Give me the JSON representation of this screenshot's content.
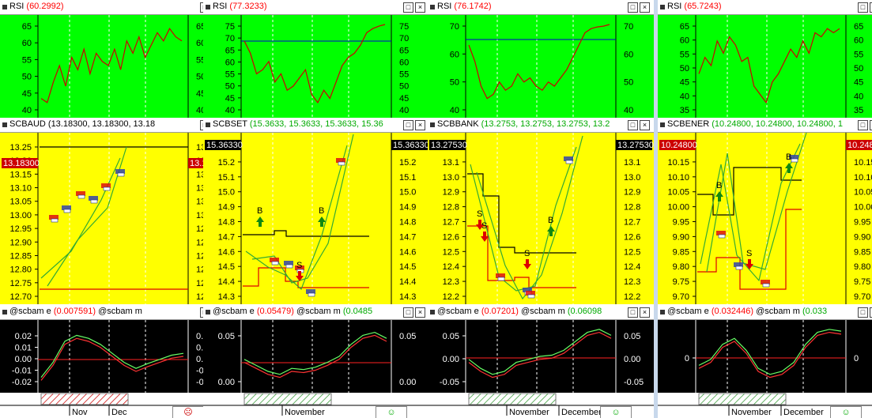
{
  "columns": [
    {
      "rsi_title": "RSI",
      "rsi_value": "(60.2992)",
      "rsi_ticks": [
        "65",
        "60",
        "55",
        "50",
        "45",
        "40"
      ],
      "price_title": "SCBAUD",
      "price_values": "(13.18300, 13.18300, 13.18",
      "price_badge": "13.18300",
      "price_ticks": [
        "13.25",
        "13.20",
        "13.15",
        "13.10",
        "13.05",
        "13.00",
        "12.95",
        "12.90",
        "12.85",
        "12.80",
        "12.75",
        "12.70"
      ],
      "osc_title": "@scbam e",
      "osc_e_value": "(0.007591)",
      "osc_m_label": "@scbam m",
      "osc_ticks": [
        "0.02",
        "0.01",
        "0.00",
        "-0.01",
        "-0.02"
      ],
      "months": [
        "Nov",
        "Dec"
      ],
      "smile": "☹",
      "signals": []
    },
    {
      "rsi_title": "RSI",
      "rsi_value": "(77.3233)",
      "rsi_ticks": [
        "75",
        "70",
        "65",
        "60",
        "55",
        "50",
        "45",
        "40"
      ],
      "price_title": "SCBSET",
      "price_values": "(15.3633, 15.3633, 15.3633, 15.36",
      "price_badge": "15.36330",
      "price_ticks": [
        "15.3",
        "15.2",
        "15.1",
        "15.0",
        "14.9",
        "14.8",
        "14.7",
        "14.6",
        "14.5",
        "14.4",
        "14.3"
      ],
      "osc_title": "@scbam e",
      "osc_e_value": "(0.05479)",
      "osc_m_label": "@scbam m",
      "osc_m_value": "(0.0485",
      "osc_ticks": [
        "0.05",
        "0.00"
      ],
      "months": [
        "November"
      ],
      "smile": "☺",
      "signals": [
        "B",
        "B",
        "S"
      ]
    },
    {
      "rsi_title": "RSI",
      "rsi_value": "(76.1742)",
      "rsi_ticks": [
        "70",
        "60",
        "50",
        "40"
      ],
      "price_title": "SCBBANK",
      "price_values": "(13.2753, 13.2753, 13.2753, 13.2",
      "price_badge": "13.27530",
      "price_ticks": [
        "13.2",
        "13.1",
        "13.0",
        "12.9",
        "12.8",
        "12.7",
        "12.6",
        "12.5",
        "12.4",
        "12.3",
        "12.2"
      ],
      "osc_title": "@scbam e",
      "osc_e_value": "(0.07201)",
      "osc_m_label": "@scbam m",
      "osc_m_value": "(0.06098",
      "osc_ticks": [
        "0.05",
        "0.00",
        "-0.05"
      ],
      "months": [
        "November",
        "December"
      ],
      "smile": "☺",
      "signals": [
        "S",
        "S",
        "S",
        "B"
      ]
    },
    {
      "rsi_title": "RSI",
      "rsi_value": "(65.7243)",
      "rsi_ticks": [
        "65",
        "60",
        "55",
        "50",
        "45",
        "40",
        "35"
      ],
      "price_title": "SCBENER",
      "price_values": "(10.24800, 10.24800, 10.24800, 1",
      "price_badge": "10.24800",
      "price_ticks": [
        "10.20",
        "10.15",
        "10.10",
        "10.05",
        "10.00",
        "9.95",
        "9.90",
        "9.85",
        "9.80",
        "9.75",
        "9.70"
      ],
      "osc_title": "@scbam e",
      "osc_e_value": "(0.032446)",
      "osc_m_label": "@scbam m",
      "osc_m_value": "(0.033",
      "osc_ticks": [
        "0"
      ],
      "months": [
        "November",
        "December"
      ],
      "smile": "☺",
      "signals": [
        "B",
        "B",
        "S"
      ]
    }
  ],
  "colors": {
    "rsi_bg": "#00ff00",
    "price_bg": "#ffff00",
    "osc_bg": "#000000",
    "rsi_line": "#cc0000",
    "trend_line": "#33aa33",
    "stop_red": "#dd0000",
    "stop_black": "#000000",
    "osc_green": "#66ff66",
    "osc_red": "#ff3333",
    "value_red": "#ff0000",
    "value_green": "#00aa00",
    "badge_bg": "#cc0000",
    "badge_dark": "#000000"
  }
}
